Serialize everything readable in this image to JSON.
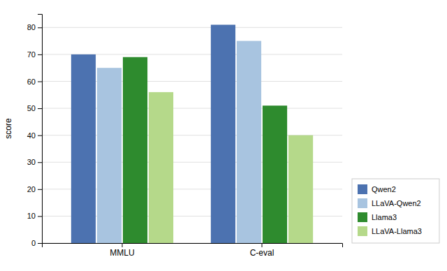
{
  "chart_data": {
    "type": "bar",
    "categories": [
      "MMLU",
      "C-eval"
    ],
    "series": [
      {
        "name": "Qwen2",
        "color": "#4C72B0",
        "values": [
          70,
          81
        ]
      },
      {
        "name": "LLaVA-Qwen2",
        "color": "#A8C4E0",
        "values": [
          65,
          75
        ]
      },
      {
        "name": "Llama3",
        "color": "#2E8B2E",
        "values": [
          69,
          51
        ]
      },
      {
        "name": "LLaVA-Llama3",
        "color": "#B5D98A",
        "values": [
          56,
          40
        ]
      }
    ],
    "ylabel": "score",
    "ylim": [
      0,
      85
    ],
    "yticks": [
      0,
      10,
      20,
      30,
      40,
      50,
      60,
      70,
      80
    ],
    "grid": true,
    "legend": "lower right"
  }
}
